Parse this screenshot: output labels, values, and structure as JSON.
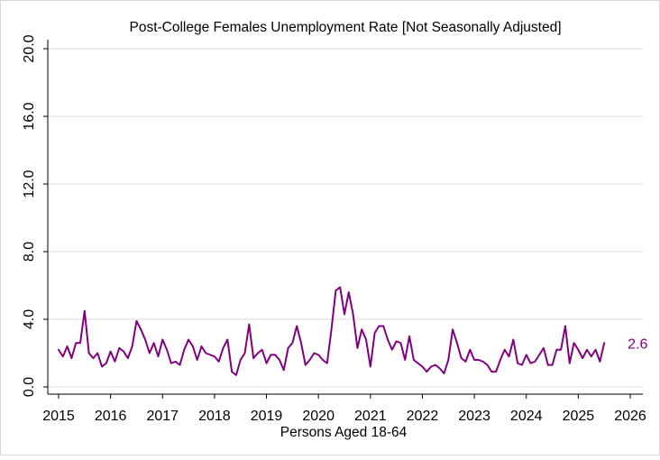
{
  "chart_data": {
    "type": "line",
    "title": "Post-College Females Unemployment Rate [Not Seasonally Adjusted]",
    "xlabel": "Persons Aged 18-64",
    "ylabel": "",
    "xlim": [
      2015,
      2026
    ],
    "ylim": [
      0,
      20
    ],
    "x_ticks": [
      "2015",
      "2016",
      "2017",
      "2018",
      "2019",
      "2020",
      "2021",
      "2022",
      "2023",
      "2024",
      "2025",
      "2026"
    ],
    "y_ticks": [
      "0.0",
      "4.0",
      "8.0",
      "12.0",
      "16.0",
      "20.0"
    ],
    "grid": true,
    "line_color": "#800080",
    "last_value_label": "2.6",
    "series": [
      {
        "values": [
          2.2,
          1.8,
          2.4,
          1.7,
          2.6,
          2.6,
          4.5,
          2.0,
          1.7,
          2.0,
          1.2,
          1.4,
          2.1,
          1.5,
          2.3,
          2.1,
          1.7,
          2.4,
          3.9,
          3.4,
          2.8,
          2.0,
          2.6,
          1.8,
          2.8,
          2.2,
          1.4,
          1.5,
          1.3,
          2.2,
          2.8,
          2.4,
          1.6,
          2.4,
          2.0,
          1.9,
          1.8,
          1.5,
          2.3,
          2.8,
          0.9,
          0.7,
          1.6,
          2.0,
          3.7,
          1.7,
          2.0,
          2.2,
          1.4,
          1.9,
          1.9,
          1.6,
          1.0,
          2.3,
          2.6,
          3.6,
          2.6,
          1.3,
          1.6,
          2.0,
          1.9,
          1.6,
          1.4,
          3.4,
          5.7,
          5.9,
          4.3,
          5.6,
          4.3,
          2.3,
          3.4,
          2.8,
          1.2,
          3.2,
          3.6,
          3.6,
          2.8,
          2.2,
          2.7,
          2.6,
          1.6,
          3.0,
          1.6,
          1.4,
          1.2,
          0.9,
          1.2,
          1.3,
          1.1,
          0.8,
          1.6,
          3.4,
          2.6,
          1.7,
          1.5,
          2.2,
          1.6,
          1.6,
          1.5,
          1.3,
          0.9,
          0.9,
          1.6,
          2.2,
          1.8,
          2.8,
          1.4,
          1.3,
          1.9,
          1.4,
          1.5,
          1.9,
          2.3,
          1.3,
          1.3,
          2.2,
          2.2,
          3.6,
          1.4,
          2.6,
          2.2,
          1.7,
          2.2,
          1.8,
          2.2,
          1.5,
          2.6
        ]
      }
    ]
  }
}
